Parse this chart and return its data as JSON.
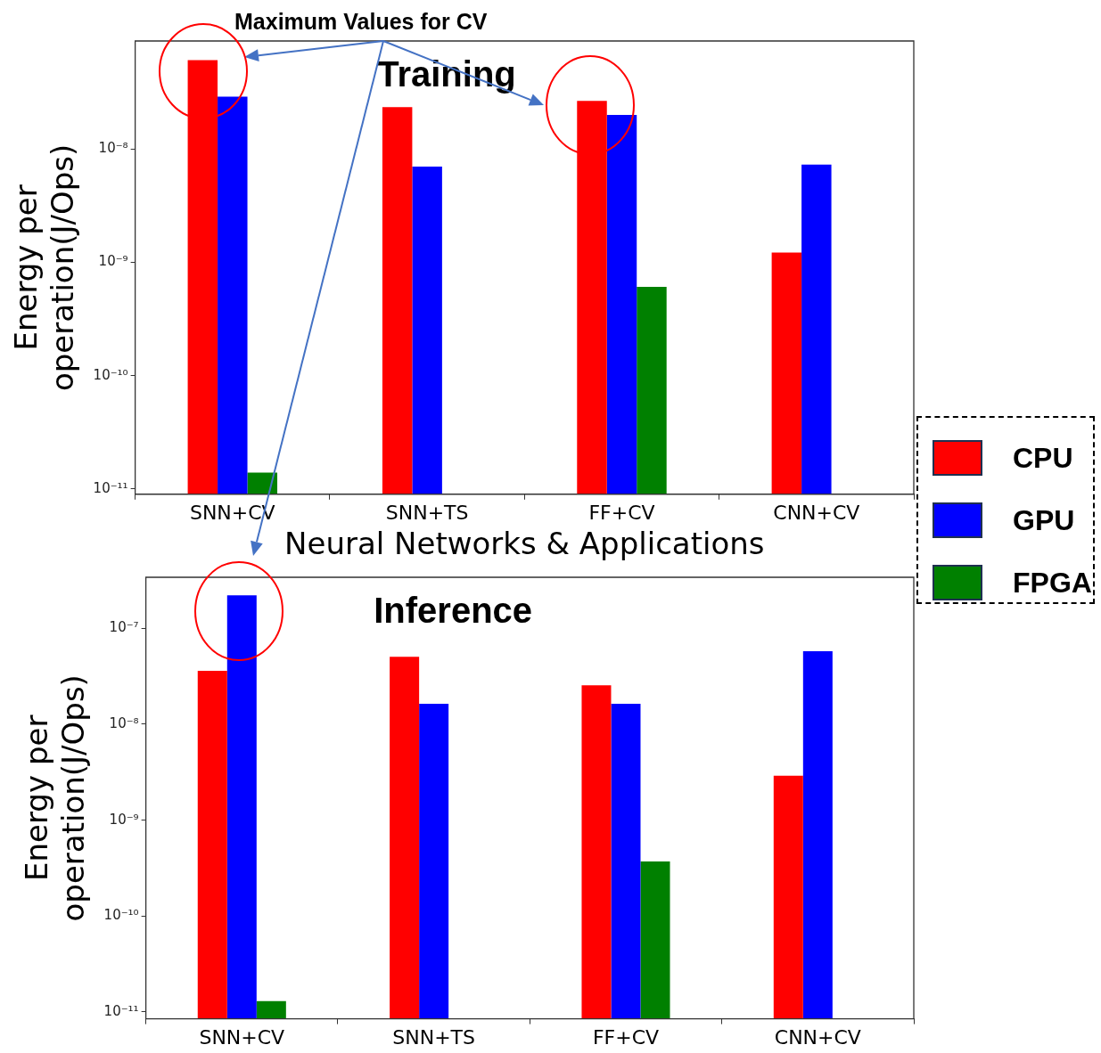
{
  "chart_data": [
    {
      "type": "bar",
      "title": "Training",
      "xlabel": "Neural Networks & Applications",
      "ylabel": "Energy per\noperation(J/Ops)",
      "annotations": [
        "Maximum Values for CV"
      ],
      "log": true,
      "legend": "right",
      "categories": [
        "SNN+CV",
        "SNN+TS",
        "FF+CV",
        "CNN+CV"
      ],
      "ylim": [
        9e-12,
        9e-08
      ],
      "yticks": [
        {
          "value": 1e-11,
          "label": "10⁻¹¹"
        },
        {
          "value": 1e-10,
          "label": "10⁻¹⁰"
        },
        {
          "value": 1e-09,
          "label": "10⁻⁹"
        },
        {
          "value": 1e-08,
          "label": "10⁻⁸"
        }
      ],
      "series": [
        {
          "name": "CPU",
          "color": "#ff0000",
          "values": [
            6.1e-08,
            2.35e-08,
            2.66e-08,
            1.22e-09
          ]
        },
        {
          "name": "GPU",
          "color": "#0000ff",
          "values": [
            2.9e-08,
            7e-09,
            2e-08,
            7.3e-09
          ]
        },
        {
          "name": "FPGA",
          "color": "#008000",
          "values": [
            1.4e-11,
            null,
            6.1e-10,
            null
          ]
        }
      ]
    },
    {
      "type": "bar",
      "title": "Inference",
      "ylabel": "Energy per\noperation(J/Ops)",
      "log": true,
      "categories": [
        "SNN+CV",
        "SNN+TS",
        "FF+CV",
        "CNN+CV"
      ],
      "ylim": [
        8.5e-12,
        3.4e-07
      ],
      "yticks": [
        {
          "value": 1e-11,
          "label": "10⁻¹¹"
        },
        {
          "value": 1e-10,
          "label": "10⁻¹⁰"
        },
        {
          "value": 1e-09,
          "label": "10⁻⁹"
        },
        {
          "value": 1e-08,
          "label": "10⁻⁸"
        },
        {
          "value": 1e-07,
          "label": "10⁻⁷"
        }
      ],
      "series": [
        {
          "color": "#ff0000",
          "values": [
            3.6e-08,
            5.05e-08,
            2.55e-08,
            2.9e-09
          ]
        },
        {
          "color": "#0000ff",
          "values": [
            2.2e-07,
            1.63e-08,
            1.63e-08,
            5.75e-08
          ]
        },
        {
          "color": "#008000",
          "values": [
            1.3e-11,
            null,
            3.7e-10,
            null
          ]
        }
      ]
    }
  ]
}
